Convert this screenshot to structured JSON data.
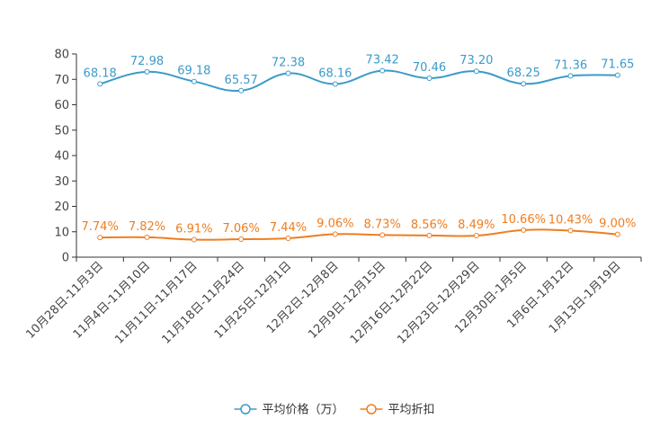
{
  "chart_data": {
    "type": "line",
    "title": "",
    "xlabel": "",
    "ylabel": "",
    "ylim": [
      0,
      80
    ],
    "yticks": [
      0,
      10,
      20,
      30,
      40,
      50,
      60,
      70,
      80
    ],
    "categories": [
      "10月28日-11月3日",
      "11月4日-11月10日",
      "11月11日-11月17日",
      "11月18日-11月24日",
      "11月25日-12月1日",
      "12月2日-12月8日",
      "12月9日-12月15日",
      "12月16日-12月22日",
      "12月23日-12月29日",
      "12月30日-1月5日",
      "1月6日-1月12日",
      "1月13日-1月19日"
    ],
    "series": [
      {
        "name": "平均价格（万）",
        "color": "#3a9bc9",
        "values": [
          68.18,
          72.98,
          69.18,
          65.57,
          72.38,
          68.16,
          73.42,
          70.46,
          73.2,
          68.25,
          71.36,
          71.65
        ],
        "labels": [
          "68.18",
          "72.98",
          "69.18",
          "65.57",
          "72.38",
          "68.16",
          "73.42",
          "70.46",
          "73.20",
          "68.25",
          "71.36",
          "71.65"
        ]
      },
      {
        "name": "平均折扣",
        "color": "#f07d1e",
        "values": [
          7.74,
          7.82,
          6.91,
          7.06,
          7.44,
          9.06,
          8.73,
          8.56,
          8.49,
          10.66,
          10.43,
          9.0
        ],
        "labels": [
          "7.74%",
          "7.82%",
          "6.91%",
          "7.06%",
          "7.44%",
          "9.06%",
          "8.73%",
          "8.56%",
          "8.49%",
          "10.66%",
          "10.43%",
          "9.00%"
        ]
      }
    ],
    "legend_position": "bottom-center",
    "grid": false
  }
}
